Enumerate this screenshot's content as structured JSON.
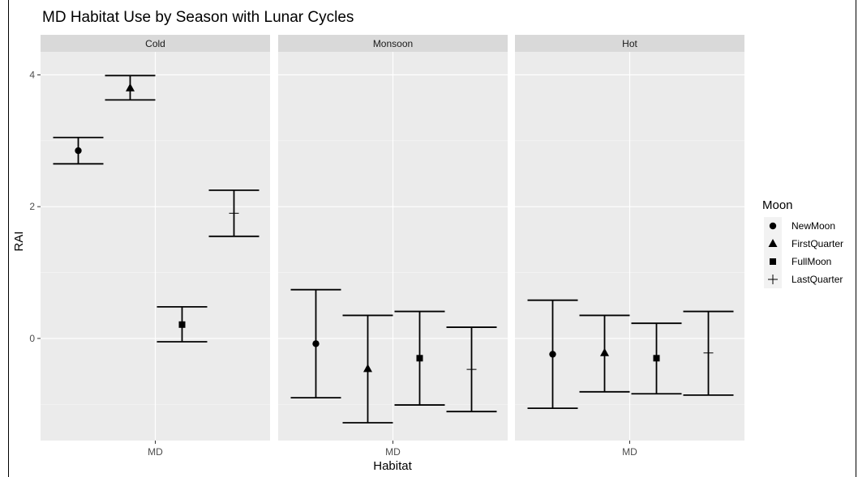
{
  "chart_data": {
    "type": "errorbar",
    "title": "MD Habitat Use by Season with Lunar Cycles",
    "xlabel": "Habitat",
    "ylabel": "RAI",
    "ylim": [
      -1.55,
      4.35
    ],
    "yticks": [
      0,
      2,
      4
    ],
    "grid": true,
    "legend": {
      "title": "Moon",
      "position": "right",
      "entries": [
        {
          "label": "NewMoon",
          "shape": "circle"
        },
        {
          "label": "FirstQuarter",
          "shape": "triangle"
        },
        {
          "label": "FullMoon",
          "shape": "square"
        },
        {
          "label": "LastQuarter",
          "shape": "plus"
        }
      ]
    },
    "panels": [
      {
        "facet": "Cold",
        "x_category": "MD",
        "points": [
          {
            "moon": "NewMoon",
            "y": 2.85,
            "ymin": 2.65,
            "ymax": 3.05
          },
          {
            "moon": "FirstQuarter",
            "y": 3.8,
            "ymin": 3.62,
            "ymax": 3.99
          },
          {
            "moon": "FullMoon",
            "y": 0.21,
            "ymin": -0.05,
            "ymax": 0.48
          },
          {
            "moon": "LastQuarter",
            "y": 1.9,
            "ymin": 1.55,
            "ymax": 2.25
          }
        ]
      },
      {
        "facet": "Monsoon",
        "x_category": "MD",
        "points": [
          {
            "moon": "NewMoon",
            "y": -0.08,
            "ymin": -0.9,
            "ymax": 0.74
          },
          {
            "moon": "FirstQuarter",
            "y": -0.46,
            "ymin": -1.28,
            "ymax": 0.35
          },
          {
            "moon": "FullMoon",
            "y": -0.3,
            "ymin": -1.01,
            "ymax": 0.41
          },
          {
            "moon": "LastQuarter",
            "y": -0.47,
            "ymin": -1.11,
            "ymax": 0.17
          }
        ]
      },
      {
        "facet": "Hot",
        "x_category": "MD",
        "points": [
          {
            "moon": "NewMoon",
            "y": -0.24,
            "ymin": -1.06,
            "ymax": 0.58
          },
          {
            "moon": "FirstQuarter",
            "y": -0.22,
            "ymin": -0.81,
            "ymax": 0.35
          },
          {
            "moon": "FullMoon",
            "y": -0.3,
            "ymin": -0.84,
            "ymax": 0.23
          },
          {
            "moon": "LastQuarter",
            "y": -0.22,
            "ymin": -0.86,
            "ymax": 0.41
          }
        ]
      }
    ]
  }
}
